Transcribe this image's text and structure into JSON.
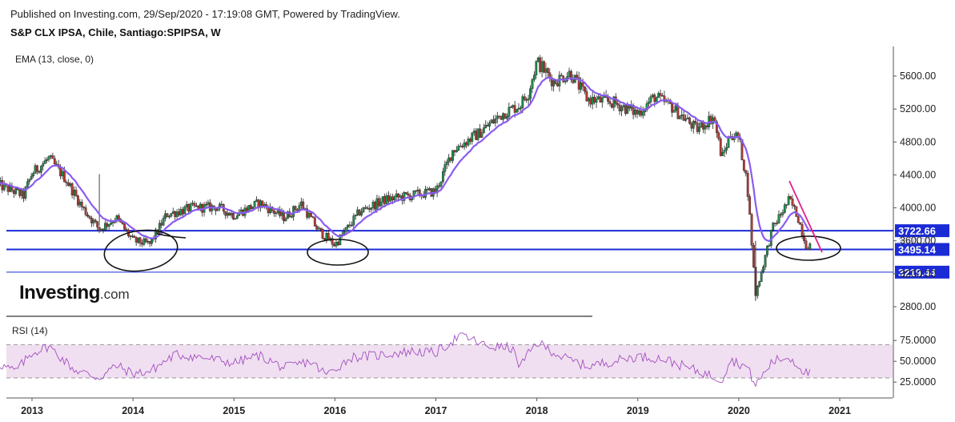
{
  "header": {
    "published": "Published on Investing.com, 29/Sep/2020 - 17:19:08 GMT, Powered by TradingView.",
    "symbol": "S&P CLX IPSA, Chile, Santiago:SPIPSA, W"
  },
  "indicators": {
    "ema_label": "EMA (13, close, 0)",
    "rsi_label": "RSI (14)"
  },
  "logo": {
    "brand": "Investing",
    "domain": ".com"
  },
  "colors": {
    "up": "#1e8a4c",
    "down": "#b03a34",
    "ema": "#8a5cf0",
    "level_line": "#1b2bd6",
    "rsi_line": "#a24fc2",
    "rsi_band": "#f0dff0",
    "trend_line": "#e0208a"
  },
  "chart_data": [
    {
      "type": "candlestick",
      "title": "S&P CLX IPSA, Chile, Santiago:SPIPSA, W",
      "x_tick_labels": [
        "2013",
        "2014",
        "2015",
        "2016",
        "2017",
        "2018",
        "2019",
        "2020",
        "2021"
      ],
      "y_tick_labels": [
        "2800.00",
        "3200.00",
        "3600.00",
        "4000.00",
        "4400.00",
        "4800.00",
        "5200.00",
        "5600.00"
      ],
      "ylim": [
        2640,
        5880
      ],
      "grid": false,
      "price_path": [
        [
          "2012-09",
          4280
        ],
        [
          "2012-12",
          4150
        ],
        [
          "2013-01",
          4420
        ],
        [
          "2013-03",
          4600
        ],
        [
          "2013-05",
          4350
        ],
        [
          "2013-07",
          4000
        ],
        [
          "2013-09",
          3740
        ],
        [
          "2013-11",
          3880
        ],
        [
          "2014-01",
          3600
        ],
        [
          "2014-03",
          3560
        ],
        [
          "2014-05",
          3920
        ],
        [
          "2014-08",
          4000
        ],
        [
          "2014-11",
          4010
        ],
        [
          "2015-01",
          3910
        ],
        [
          "2015-04",
          4060
        ],
        [
          "2015-07",
          3880
        ],
        [
          "2015-09",
          4050
        ],
        [
          "2015-11",
          3730
        ],
        [
          "2016-01",
          3550
        ],
        [
          "2016-04",
          3960
        ],
        [
          "2016-07",
          4100
        ],
        [
          "2016-10",
          4150
        ],
        [
          "2017-01",
          4200
        ],
        [
          "2017-03",
          4700
        ],
        [
          "2017-06",
          4900
        ],
        [
          "2017-09",
          5150
        ],
        [
          "2017-11",
          5250
        ],
        [
          "2017-12",
          5400
        ],
        [
          "2018-01",
          5780
        ],
        [
          "2018-03",
          5530
        ],
        [
          "2018-05",
          5640
        ],
        [
          "2018-07",
          5320
        ],
        [
          "2018-10",
          5280
        ],
        [
          "2019-01",
          5150
        ],
        [
          "2019-03",
          5350
        ],
        [
          "2019-05",
          5230
        ],
        [
          "2019-08",
          4950
        ],
        [
          "2019-10",
          5110
        ],
        [
          "2019-11",
          4600
        ],
        [
          "2019-12",
          4900
        ],
        [
          "2020-01",
          4850
        ],
        [
          "2020-02",
          4300
        ],
        [
          "2020-03",
          2950
        ],
        [
          "2020-05",
          3750
        ],
        [
          "2020-07",
          4100
        ],
        [
          "2020-08",
          3900
        ],
        [
          "2020-09",
          3550
        ]
      ],
      "ema": {
        "name": "EMA (13, close, 0)",
        "period": 13
      },
      "horizontal_levels": [
        {
          "label": "3722.66",
          "value": 3722.66,
          "style": "thick"
        },
        {
          "label": "3495.14",
          "value": 3495.14,
          "style": "thick"
        },
        {
          "label": "3219.44",
          "value": 3219.44,
          "style": "thin"
        }
      ],
      "hidden_price_label": "3600.00",
      "annotations": [
        "hand-drawn ellipse near 2014 lows",
        "hand-drawn ellipse near 2016 lows",
        "hand-drawn ellipse near Sep 2020",
        "pink descending trend line 2020"
      ]
    },
    {
      "type": "line",
      "title": "RSI (14)",
      "y_tick_labels": [
        "25.0000",
        "50.0000",
        "75.0000"
      ],
      "ylim": [
        20,
        85
      ],
      "band": [
        30,
        70
      ],
      "rsi_path": [
        [
          "2012-09",
          47
        ],
        [
          "2012-11",
          38
        ],
        [
          "2013-01",
          60
        ],
        [
          "2013-03",
          68
        ],
        [
          "2013-06",
          40
        ],
        [
          "2013-09",
          30
        ],
        [
          "2013-11",
          45
        ],
        [
          "2014-01",
          35
        ],
        [
          "2014-03",
          38
        ],
        [
          "2014-06",
          58
        ],
        [
          "2014-09",
          55
        ],
        [
          "2015-01",
          48
        ],
        [
          "2015-04",
          57
        ],
        [
          "2015-07",
          42
        ],
        [
          "2015-10",
          50
        ],
        [
          "2015-12",
          34
        ],
        [
          "2016-03",
          55
        ],
        [
          "2016-06",
          57
        ],
        [
          "2016-10",
          62
        ],
        [
          "2017-01",
          60
        ],
        [
          "2017-04",
          82
        ],
        [
          "2017-07",
          68
        ],
        [
          "2017-10",
          66
        ],
        [
          "2017-11",
          44
        ],
        [
          "2018-01",
          73
        ],
        [
          "2018-04",
          55
        ],
        [
          "2018-07",
          44
        ],
        [
          "2018-10",
          50
        ],
        [
          "2019-01",
          56
        ],
        [
          "2019-04",
          53
        ],
        [
          "2019-07",
          42
        ],
        [
          "2019-11",
          28
        ],
        [
          "2019-12",
          52
        ],
        [
          "2020-02",
          43
        ],
        [
          "2020-03",
          21
        ],
        [
          "2020-05",
          50
        ],
        [
          "2020-07",
          55
        ],
        [
          "2020-09",
          36
        ]
      ]
    }
  ]
}
